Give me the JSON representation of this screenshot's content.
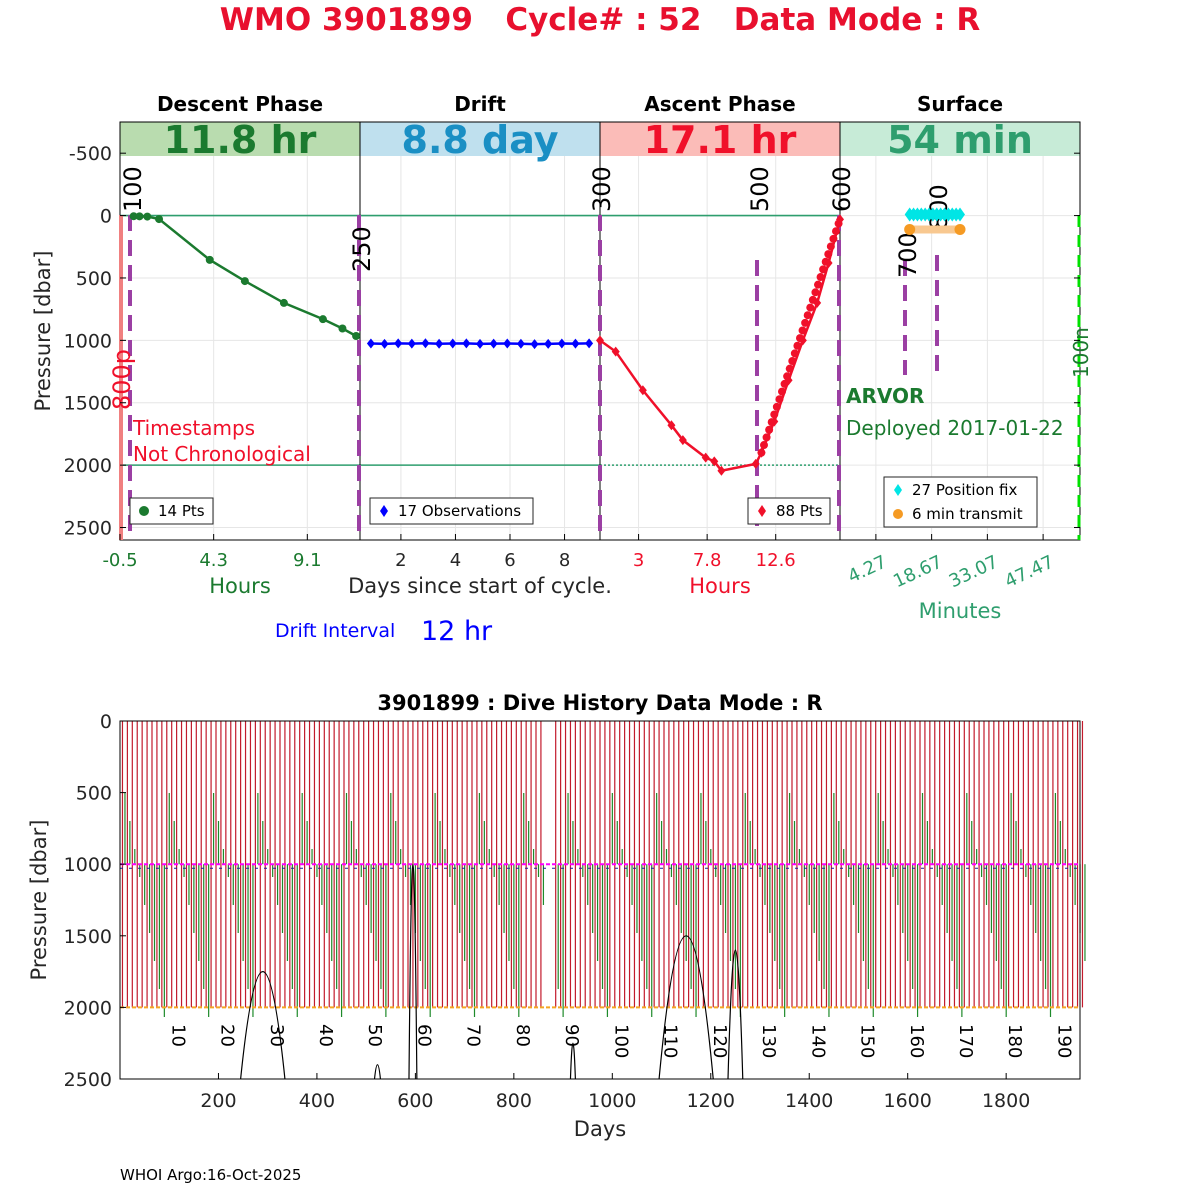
{
  "title": "WMO 3901899   Cycle# : 52   Data Mode : R",
  "footer": "WHOI Argo:16-Oct-2025",
  "colors": {
    "title": "#e8102e",
    "descent": "#1b7a2f",
    "drift": "#0000ff",
    "ascent": "#f0102a",
    "surface_fix": "#00e5e5",
    "surface_tx": "#f59a23",
    "phase_line": "#9b3fa3",
    "teal": "#2e9e6e",
    "history_red": "#c21a2c",
    "history_green": "#1e8a2a",
    "history_magenta": "#ff00ff",
    "history_orange": "#f5a623",
    "bright_green": "#00e000"
  },
  "chart_data": [
    {
      "type": "line",
      "name": "cycle-profile",
      "ylabel": "Pressure [dbar]",
      "ylim": [
        2600,
        -750
      ],
      "yticks": [
        -500,
        0,
        500,
        1000,
        1500,
        2000,
        2500
      ],
      "hlines": [
        0,
        2000
      ],
      "phases": [
        {
          "key": "descent",
          "title": "Descent Phase",
          "duration": "11.8 hr",
          "band_color": "#b9dcaf",
          "text_color": "#1b7a2f",
          "xlabel": "Hours",
          "xlim": [
            -0.5,
            11.8
          ],
          "xtick_labels": [
            "-0.5",
            "4.3",
            "9.1"
          ],
          "xtick_values": [
            -0.5,
            4.3,
            9.1
          ],
          "legend": "14 Pts",
          "x": [
            0.2,
            0.5,
            0.9,
            1.5,
            4.1,
            5.9,
            7.9,
            9.9,
            10.9,
            11.6
          ],
          "y": [
            5,
            6,
            8,
            28,
            355,
            525,
            700,
            830,
            905,
            965
          ]
        },
        {
          "key": "drift",
          "title": "Drift",
          "duration": "8.8 day",
          "band_color": "#bfe0ee",
          "text_color": "#1a8fc4",
          "xlabel": "Days since start of cycle.",
          "xlim": [
            0.5,
            9.3
          ],
          "xtick_labels": [
            "2",
            "4",
            "6",
            "8"
          ],
          "xtick_values": [
            2,
            4,
            6,
            8
          ],
          "legend": "17 Observations",
          "x": [
            0.9,
            1.4,
            1.9,
            2.4,
            2.9,
            3.4,
            3.9,
            4.4,
            4.9,
            5.4,
            5.9,
            6.4,
            6.9,
            7.4,
            7.9,
            8.4,
            8.9
          ],
          "y": [
            1025,
            1028,
            1024,
            1026,
            1023,
            1027,
            1025,
            1024,
            1028,
            1026,
            1025,
            1027,
            1030,
            1028,
            1025,
            1026,
            1024
          ]
        },
        {
          "key": "ascent",
          "title": "Ascent Phase",
          "duration": "17.1 hr",
          "band_color": "#fbbcb8",
          "text_color": "#f0102a",
          "xlabel": "Hours",
          "xlim": [
            0.3,
            17.1
          ],
          "xtick_labels": [
            "3",
            "7.8",
            "12.6"
          ],
          "xtick_values": [
            3,
            7.8,
            12.6
          ],
          "legend": "88 Pts",
          "x": [
            0.3,
            1.4,
            3.3,
            5.3,
            6.1,
            7.7,
            8.3,
            8.8,
            11.2,
            11.6,
            12.5,
            13.5,
            14.5,
            15.5,
            16.3,
            17.1
          ],
          "y": [
            1000,
            1090,
            1400,
            1680,
            1800,
            1940,
            1970,
            2045,
            1990,
            1900,
            1650,
            1320,
            1000,
            700,
            380,
            30
          ]
        },
        {
          "key": "surface",
          "title": "Surface",
          "duration": "54 min",
          "band_color": "#c7ebd7",
          "text_color": "#2e9e6e",
          "xlabel": "Minutes",
          "xlim": [
            -5,
            57
          ],
          "xtick_labels": [
            "4.27",
            "18.67",
            "33.07",
            "47.47"
          ],
          "xtick_values": [
            4.27,
            18.67,
            33.07,
            47.47
          ],
          "legend_fix": "27 Position fix",
          "legend_tx": "6 min transmit",
          "fix_x": [
            13,
            14,
            15,
            16,
            17,
            18,
            19,
            20,
            21,
            22,
            23,
            24,
            25,
            26
          ],
          "fix_y": 55,
          "tx_x": [
            13,
            26
          ],
          "tx_y": 55
        }
      ],
      "phase_labels": [
        {
          "text": "100",
          "phase": "descent",
          "at": 0.5
        },
        {
          "text": "250",
          "phase": "descent",
          "at": 11.8
        },
        {
          "text": "300",
          "phase": "drift",
          "at": 9.3
        },
        {
          "text": "500",
          "phase": "ascent",
          "at": 11.2
        },
        {
          "text": "600",
          "phase": "ascent",
          "at": 17.1
        },
        {
          "text": "700",
          "phase": "surface",
          "at": 11
        },
        {
          "text": "800",
          "phase": "surface",
          "at": 19
        }
      ],
      "side_label_red": "800p",
      "side_label_green": "100n",
      "warning_line1": "Timestamps",
      "warning_line2": "Not Chronological",
      "float_type": "ARVOR",
      "deployed": "Deployed 2017-01-22",
      "drift_interval_label": "Drift Interval",
      "drift_interval_value": "12 hr"
    },
    {
      "type": "line",
      "name": "dive-history",
      "title": "3901899 : Dive History      Data Mode : R",
      "xlabel": "Days",
      "ylabel": "Pressure [dbar]",
      "xlim": [
        0,
        1950
      ],
      "ylim": [
        2500,
        0
      ],
      "xticks": [
        200,
        400,
        600,
        800,
        1000,
        1200,
        1400,
        1600,
        1800
      ],
      "yticks": [
        0,
        500,
        1000,
        1500,
        2000,
        2500
      ],
      "cycle_labels": [
        "10",
        "20",
        "30",
        "40",
        "50",
        "60",
        "70",
        "80",
        "90",
        "100",
        "110",
        "120",
        "130",
        "140",
        "150",
        "160",
        "170",
        "180",
        "190"
      ],
      "cycle_days": [
        90,
        190,
        290,
        390,
        490,
        590,
        690,
        790,
        890,
        990,
        1090,
        1190,
        1290,
        1390,
        1490,
        1590,
        1690,
        1790,
        1890
      ],
      "cycle_count": 196,
      "cycle_period_days": 10,
      "gap_days": [
        860,
        870
      ],
      "drift_pressure": 1000,
      "profile_pressure": 2000,
      "bumps": [
        {
          "center": 290,
          "halfwidth": 45,
          "top": 1750
        },
        {
          "center": 523,
          "halfwidth": 6,
          "top": 2400
        },
        {
          "center": 595,
          "halfwidth": 8,
          "top": 1000
        },
        {
          "center": 920,
          "halfwidth": 5,
          "top": 2250
        },
        {
          "center": 1150,
          "halfwidth": 55,
          "top": 1500
        },
        {
          "center": 1250,
          "halfwidth": 15,
          "top": 1600
        }
      ]
    }
  ]
}
